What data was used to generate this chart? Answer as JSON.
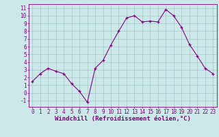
{
  "x": [
    0,
    1,
    2,
    3,
    4,
    5,
    6,
    7,
    8,
    9,
    10,
    11,
    12,
    13,
    14,
    15,
    16,
    17,
    18,
    19,
    20,
    21,
    22,
    23
  ],
  "y": [
    1.5,
    2.5,
    3.2,
    2.8,
    2.5,
    1.2,
    0.2,
    -1.2,
    3.2,
    4.2,
    6.2,
    8.0,
    9.7,
    10.0,
    9.2,
    9.3,
    9.2,
    10.8,
    10.0,
    8.5,
    6.3,
    4.8,
    3.2,
    2.5
  ],
  "line_color": "#800080",
  "marker": "+",
  "bg_color": "#cce8e8",
  "grid_color": "#aacccc",
  "xlabel": "Windchill (Refroidissement éolien,°C)",
  "xlabel_color": "#800080",
  "xlabel_fontsize": 6.5,
  "tick_color": "#800080",
  "tick_fontsize": 5.5,
  "ylim": [
    -1.8,
    11.5
  ],
  "xlim": [
    -0.5,
    23.5
  ],
  "yticks": [
    -1,
    0,
    1,
    2,
    3,
    4,
    5,
    6,
    7,
    8,
    9,
    10,
    11
  ],
  "xticks": [
    0,
    1,
    2,
    3,
    4,
    5,
    6,
    7,
    8,
    9,
    10,
    11,
    12,
    13,
    14,
    15,
    16,
    17,
    18,
    19,
    20,
    21,
    22,
    23
  ]
}
